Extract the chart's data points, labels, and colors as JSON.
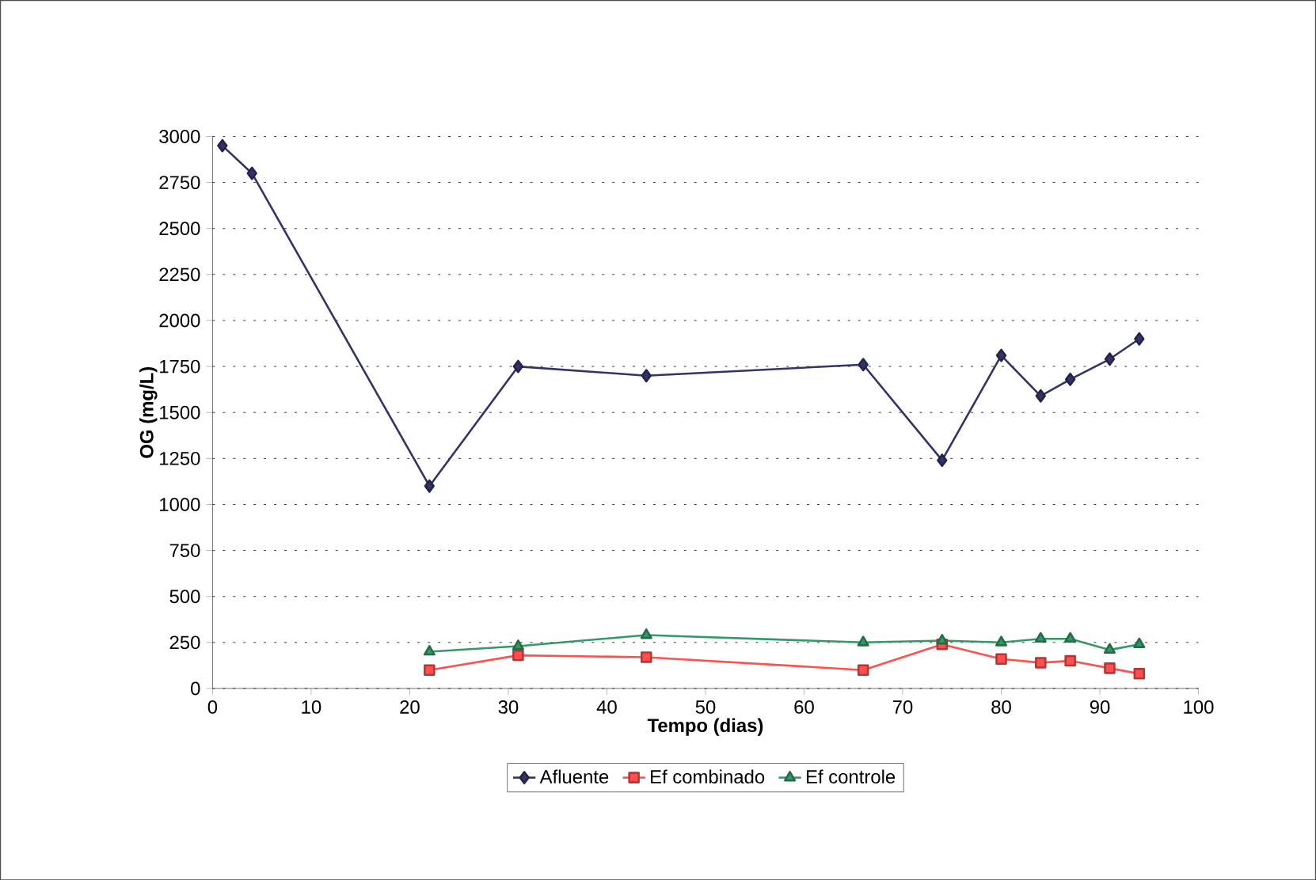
{
  "chart_data": {
    "type": "line",
    "xlabel": "Tempo (dias)",
    "ylabel": "OG (mg/L)",
    "xlim": [
      0,
      100
    ],
    "xticks": [
      0,
      10,
      20,
      30,
      40,
      50,
      60,
      70,
      80,
      90,
      100
    ],
    "ylim": [
      0,
      3000
    ],
    "yticks": [
      0,
      250,
      500,
      750,
      1000,
      1250,
      1500,
      1750,
      2000,
      2250,
      2500,
      2750,
      3000
    ],
    "grid": "y",
    "legend": "bottom",
    "series": [
      {
        "name": "Afluente",
        "color": "#333366",
        "marker": "diamond",
        "x": [
          1,
          4,
          22,
          31,
          44,
          66,
          74,
          80,
          84,
          87,
          91,
          94
        ],
        "values": [
          2950,
          2800,
          1100,
          1750,
          1700,
          1760,
          1240,
          1810,
          1590,
          1680,
          1790,
          1900
        ]
      },
      {
        "name": "Ef combinado",
        "color": "#ff5050",
        "marker": "square",
        "x": [
          22,
          31,
          44,
          66,
          74,
          80,
          84,
          87,
          91,
          94
        ],
        "values": [
          100,
          180,
          170,
          100,
          240,
          160,
          140,
          150,
          110,
          80
        ]
      },
      {
        "name": "Ef controle",
        "color": "#339966",
        "marker": "triangle",
        "x": [
          22,
          31,
          44,
          66,
          74,
          80,
          84,
          87,
          91,
          94
        ],
        "values": [
          200,
          230,
          290,
          250,
          260,
          250,
          270,
          270,
          210,
          240
        ]
      }
    ]
  }
}
